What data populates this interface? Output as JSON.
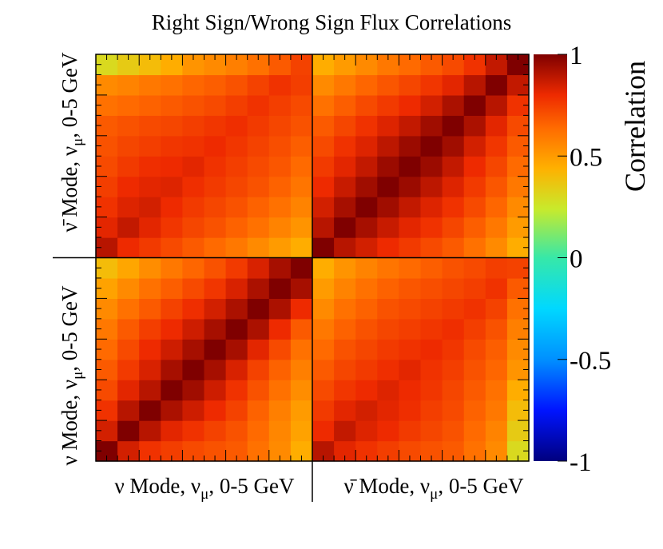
{
  "chart_data": {
    "type": "heatmap",
    "title": "Right Sign/Wrong Sign Flux Correlations",
    "xlabel": {
      "left": {
        "prefix": "ν Mode, ν",
        "sub": "μ",
        "suffix": ", 0-5 GeV"
      },
      "right": {
        "prefix": "ν̄ Mode, ν",
        "sub": "μ",
        "suffix": ", 0-5 GeV"
      }
    },
    "ylabel": {
      "bottom": {
        "prefix": "ν Mode, ν",
        "sub": "μ",
        "suffix": ", 0-5 GeV"
      },
      "top": {
        "prefix": "ν̄ Mode, ν",
        "sub": "μ",
        "suffix": ", 0-5 GeV"
      }
    },
    "colorbar": {
      "label": "Correlation",
      "range": [
        -1,
        1
      ],
      "ticks": [
        {
          "value": 1,
          "label": "1"
        },
        {
          "value": 0.5,
          "label": "0.5"
        },
        {
          "value": 0,
          "label": "0"
        },
        {
          "value": -0.5,
          "label": "-0.5"
        },
        {
          "value": -1,
          "label": "-1"
        }
      ]
    },
    "blocks_per_axis": 2,
    "bins_per_block": 10,
    "row_order": "bottom-to-top",
    "z": [
      [
        1.0,
        0.85,
        0.78,
        0.75,
        0.72,
        0.7,
        0.68,
        0.62,
        0.55,
        0.45,
        0.9,
        0.82,
        0.78,
        0.75,
        0.72,
        0.7,
        0.68,
        0.62,
        0.55,
        0.3
      ],
      [
        0.85,
        1.0,
        0.9,
        0.82,
        0.78,
        0.74,
        0.7,
        0.64,
        0.56,
        0.48,
        0.8,
        0.88,
        0.83,
        0.8,
        0.76,
        0.73,
        0.7,
        0.64,
        0.57,
        0.35
      ],
      [
        0.78,
        0.9,
        1.0,
        0.92,
        0.86,
        0.8,
        0.74,
        0.66,
        0.58,
        0.5,
        0.76,
        0.82,
        0.85,
        0.82,
        0.79,
        0.75,
        0.72,
        0.66,
        0.6,
        0.4
      ],
      [
        0.72,
        0.82,
        0.9,
        1.0,
        0.94,
        0.86,
        0.78,
        0.7,
        0.62,
        0.54,
        0.72,
        0.77,
        0.8,
        0.83,
        0.8,
        0.77,
        0.73,
        0.68,
        0.62,
        0.45
      ],
      [
        0.68,
        0.76,
        0.84,
        0.93,
        1.0,
        0.93,
        0.84,
        0.74,
        0.66,
        0.58,
        0.68,
        0.73,
        0.76,
        0.79,
        0.82,
        0.78,
        0.75,
        0.7,
        0.65,
        0.52
      ],
      [
        0.64,
        0.72,
        0.8,
        0.86,
        0.93,
        1.0,
        0.93,
        0.82,
        0.72,
        0.62,
        0.64,
        0.7,
        0.73,
        0.76,
        0.78,
        0.8,
        0.77,
        0.72,
        0.67,
        0.55
      ],
      [
        0.6,
        0.68,
        0.75,
        0.8,
        0.86,
        0.93,
        1.0,
        0.92,
        0.8,
        0.68,
        0.6,
        0.66,
        0.7,
        0.73,
        0.75,
        0.77,
        0.79,
        0.75,
        0.7,
        0.58
      ],
      [
        0.55,
        0.62,
        0.68,
        0.74,
        0.79,
        0.85,
        0.92,
        1.0,
        0.92,
        0.8,
        0.55,
        0.62,
        0.66,
        0.7,
        0.72,
        0.74,
        0.76,
        0.78,
        0.74,
        0.62
      ],
      [
        0.48,
        0.55,
        0.62,
        0.67,
        0.72,
        0.77,
        0.84,
        0.92,
        1.0,
        0.93,
        0.5,
        0.57,
        0.62,
        0.66,
        0.69,
        0.71,
        0.73,
        0.75,
        0.78,
        0.68
      ],
      [
        0.4,
        0.47,
        0.54,
        0.6,
        0.65,
        0.7,
        0.76,
        0.84,
        0.93,
        1.0,
        0.45,
        0.52,
        0.57,
        0.61,
        0.64,
        0.67,
        0.7,
        0.72,
        0.75,
        0.74
      ],
      [
        0.9,
        0.8,
        0.76,
        0.72,
        0.68,
        0.64,
        0.6,
        0.55,
        0.5,
        0.45,
        1.0,
        0.9,
        0.85,
        0.8,
        0.76,
        0.72,
        0.68,
        0.62,
        0.55,
        0.45
      ],
      [
        0.82,
        0.88,
        0.82,
        0.77,
        0.73,
        0.7,
        0.66,
        0.62,
        0.57,
        0.52,
        0.9,
        1.0,
        0.93,
        0.87,
        0.82,
        0.78,
        0.73,
        0.67,
        0.6,
        0.5
      ],
      [
        0.78,
        0.83,
        0.85,
        0.8,
        0.76,
        0.73,
        0.7,
        0.66,
        0.62,
        0.57,
        0.85,
        0.93,
        1.0,
        0.94,
        0.88,
        0.83,
        0.78,
        0.72,
        0.65,
        0.55
      ],
      [
        0.75,
        0.8,
        0.82,
        0.83,
        0.79,
        0.76,
        0.73,
        0.7,
        0.66,
        0.61,
        0.8,
        0.87,
        0.94,
        1.0,
        0.95,
        0.89,
        0.83,
        0.76,
        0.69,
        0.6
      ],
      [
        0.72,
        0.76,
        0.79,
        0.8,
        0.82,
        0.78,
        0.75,
        0.72,
        0.69,
        0.64,
        0.76,
        0.82,
        0.88,
        0.95,
        1.0,
        0.95,
        0.88,
        0.8,
        0.73,
        0.64
      ],
      [
        0.7,
        0.73,
        0.75,
        0.77,
        0.78,
        0.8,
        0.77,
        0.74,
        0.71,
        0.67,
        0.72,
        0.78,
        0.83,
        0.89,
        0.95,
        1.0,
        0.94,
        0.85,
        0.77,
        0.68
      ],
      [
        0.68,
        0.7,
        0.72,
        0.73,
        0.75,
        0.77,
        0.79,
        0.76,
        0.73,
        0.7,
        0.68,
        0.73,
        0.78,
        0.83,
        0.88,
        0.94,
        1.0,
        0.92,
        0.82,
        0.72
      ],
      [
        0.62,
        0.64,
        0.66,
        0.68,
        0.7,
        0.72,
        0.75,
        0.78,
        0.75,
        0.72,
        0.62,
        0.67,
        0.72,
        0.76,
        0.8,
        0.85,
        0.92,
        1.0,
        0.9,
        0.78
      ],
      [
        0.55,
        0.57,
        0.6,
        0.62,
        0.65,
        0.67,
        0.7,
        0.74,
        0.78,
        0.75,
        0.55,
        0.6,
        0.65,
        0.69,
        0.73,
        0.77,
        0.82,
        0.9,
        1.0,
        0.88
      ],
      [
        0.3,
        0.35,
        0.4,
        0.45,
        0.52,
        0.55,
        0.58,
        0.62,
        0.68,
        0.74,
        0.45,
        0.5,
        0.55,
        0.6,
        0.64,
        0.68,
        0.72,
        0.78,
        0.88,
        1.0
      ]
    ]
  }
}
